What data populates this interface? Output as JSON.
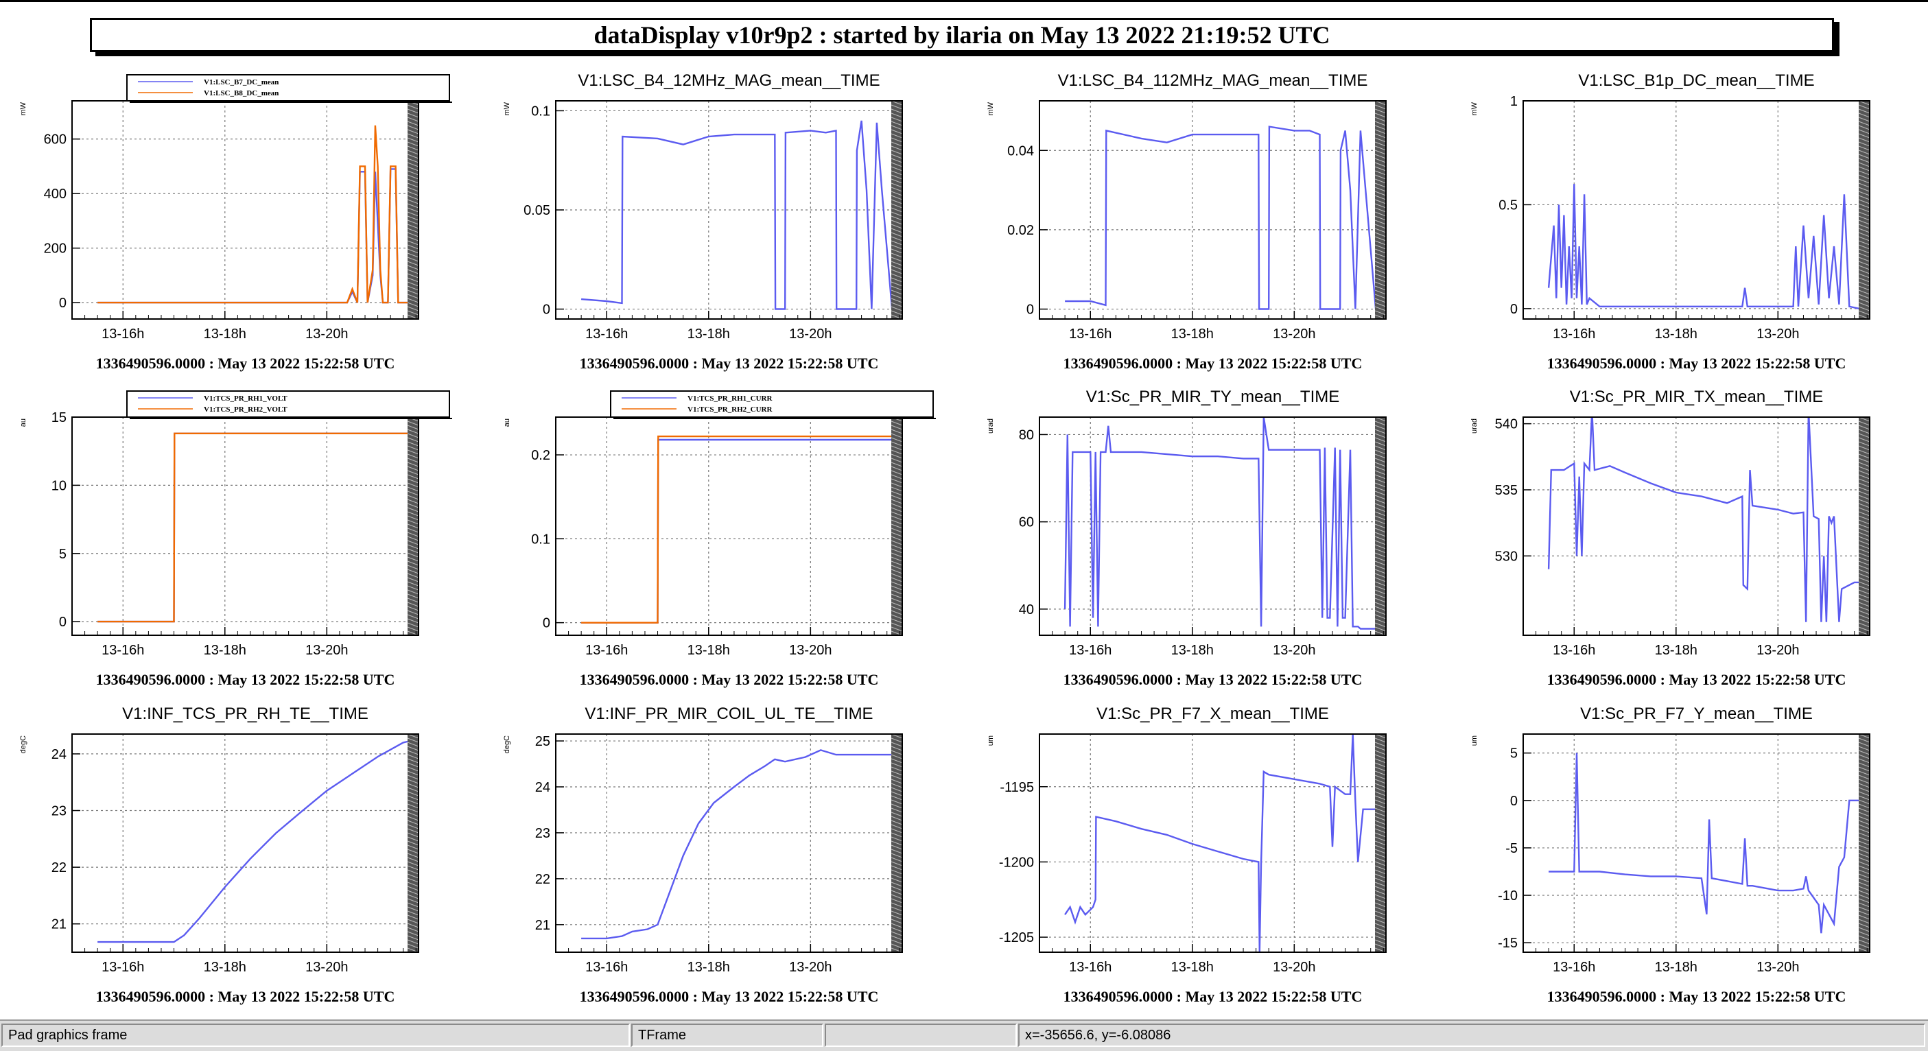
{
  "window": {
    "title": "dataDisplay v10r9p2 : started by ilaria on May 13 2022 21:19:52 UTC"
  },
  "statusbar": {
    "object_info": "Pad graphics frame",
    "class_name": "TFrame",
    "empty": "",
    "coords": "x=-35656.6, y=-6.08086"
  },
  "colors": {
    "blue": "#5b5bf0",
    "orange": "#f06a00",
    "grid": "#666666",
    "axis": "#000000"
  },
  "chart_data": [
    {
      "type": "line",
      "title": "",
      "ylabel": "mW",
      "legend": [
        "V1:LSC_B7_DC_mean",
        "V1:LSC_B8_DC_mean"
      ],
      "ylim": [
        -60,
        740
      ],
      "yticks": [
        0,
        200,
        400,
        600
      ],
      "xticks": [
        "13-16h",
        "13-18h",
        "13-20h"
      ],
      "time_label": "1336490596.0000 : May 13 2022 15:22:58 UTC",
      "series": [
        {
          "name": "V1:LSC_B7_DC_mean",
          "color": "#5b5bf0",
          "x": [
            0,
            4.9,
            5.0,
            5.1,
            5.15,
            5.25,
            5.3,
            5.4,
            5.45,
            5.55,
            5.6,
            5.7,
            5.75,
            5.85,
            5.9,
            6.0,
            6.1
          ],
          "y": [
            0,
            0,
            40,
            0,
            480,
            480,
            0,
            100,
            480,
            100,
            0,
            0,
            490,
            490,
            0,
            0,
            0
          ]
        },
        {
          "name": "V1:LSC_B8_DC_mean",
          "color": "#f06a00",
          "x": [
            0,
            4.9,
            5.0,
            5.1,
            5.15,
            5.25,
            5.3,
            5.4,
            5.45,
            5.5,
            5.55,
            5.6,
            5.7,
            5.75,
            5.85,
            5.9,
            6.0,
            6.1
          ],
          "y": [
            0,
            0,
            50,
            0,
            500,
            500,
            0,
            120,
            650,
            500,
            120,
            0,
            0,
            500,
            500,
            0,
            0,
            0
          ]
        }
      ]
    },
    {
      "type": "line",
      "title": "V1:LSC_B4_12MHz_MAG_mean__TIME",
      "ylabel": "mW",
      "legend": [],
      "ylim": [
        -0.005,
        0.105
      ],
      "yticks": [
        0,
        0.05,
        0.1
      ],
      "xticks": [
        "13-16h",
        "13-18h",
        "13-20h"
      ],
      "time_label": "1336490596.0000 : May 13 2022 15:22:58 UTC",
      "series": [
        {
          "name": "",
          "color": "#5b5bf0",
          "x": [
            0,
            0.5,
            0.8,
            0.81,
            1.5,
            2.0,
            2.5,
            3.0,
            3.5,
            3.8,
            3.81,
            4.0,
            4.01,
            4.5,
            4.8,
            5.0,
            5.01,
            5.4,
            5.41,
            5.5,
            5.6,
            5.7,
            5.8,
            5.9,
            6.1
          ],
          "y": [
            0.005,
            0.004,
            0.003,
            0.087,
            0.086,
            0.083,
            0.087,
            0.088,
            0.088,
            0.088,
            0,
            0,
            0.089,
            0.09,
            0.089,
            0.09,
            0,
            0,
            0.08,
            0.095,
            0.06,
            0,
            0.094,
            0.06,
            0.0
          ]
        }
      ]
    },
    {
      "type": "line",
      "title": "V1:LSC_B4_112MHz_MAG_mean__TIME",
      "ylabel": "mW",
      "legend": [],
      "ylim": [
        -0.0025,
        0.0525
      ],
      "yticks": [
        0,
        0.02,
        0.04
      ],
      "xticks": [
        "13-16h",
        "13-18h",
        "13-20h"
      ],
      "time_label": "1336490596.0000 : May 13 2022 15:22:58 UTC",
      "series": [
        {
          "name": "",
          "color": "#5b5bf0",
          "x": [
            0,
            0.5,
            0.8,
            0.81,
            1.5,
            2.0,
            2.5,
            3.0,
            3.5,
            3.8,
            3.81,
            4.0,
            4.01,
            4.5,
            4.8,
            5.0,
            5.01,
            5.4,
            5.41,
            5.5,
            5.6,
            5.7,
            5.8,
            5.9,
            6.1
          ],
          "y": [
            0.002,
            0.002,
            0.001,
            0.045,
            0.043,
            0.042,
            0.044,
            0.044,
            0.044,
            0.044,
            0,
            0,
            0.046,
            0.045,
            0.045,
            0.044,
            0,
            0,
            0.04,
            0.045,
            0.03,
            0,
            0.045,
            0.03,
            0.0
          ]
        }
      ]
    },
    {
      "type": "line",
      "title": "V1:LSC_B1p_DC_mean__TIME",
      "ylabel": "mW",
      "legend": [],
      "ylim": [
        -0.05,
        1.0
      ],
      "yticks": [
        0,
        0.5,
        1
      ],
      "xticks": [
        "13-16h",
        "13-18h",
        "13-20h"
      ],
      "time_label": "1336490596.0000 : May 13 2022 15:22:58 UTC",
      "series": [
        {
          "name": "",
          "color": "#5b5bf0",
          "x": [
            0,
            0.1,
            0.15,
            0.2,
            0.25,
            0.3,
            0.35,
            0.4,
            0.45,
            0.5,
            0.55,
            0.6,
            0.65,
            0.7,
            0.75,
            0.8,
            1.0,
            2.0,
            3.0,
            3.8,
            3.85,
            3.9,
            4.0,
            4.5,
            4.8,
            4.85,
            4.9,
            5.0,
            5.1,
            5.2,
            5.3,
            5.4,
            5.5,
            5.6,
            5.7,
            5.8,
            5.9,
            6.1
          ],
          "y": [
            0.1,
            0.4,
            0.05,
            0.5,
            0.1,
            0.45,
            0.02,
            0.3,
            0.05,
            0.6,
            0.05,
            0.3,
            0.02,
            0.55,
            0.02,
            0.05,
            0.01,
            0.01,
            0.01,
            0.01,
            0.1,
            0.01,
            0.01,
            0.01,
            0.01,
            0.3,
            0.01,
            0.4,
            0.05,
            0.35,
            0.02,
            0.45,
            0.05,
            0.3,
            0.02,
            0.55,
            0.01,
            0.0
          ]
        }
      ]
    },
    {
      "type": "line",
      "title": "",
      "ylabel": "au",
      "legend": [
        "V1:TCS_PR_RH1_VOLT",
        "V1:TCS_PR_RH2_VOLT"
      ],
      "ylim": [
        -1,
        15
      ],
      "yticks": [
        0,
        5,
        10,
        15
      ],
      "xticks": [
        "13-16h",
        "13-18h",
        "13-20h"
      ],
      "time_label": "1336490596.0000 : May 13 2022 15:22:58 UTC",
      "series": [
        {
          "name": "V1:TCS_PR_RH1_VOLT",
          "color": "#5b5bf0",
          "x": [
            0,
            1.5,
            1.51,
            6.1
          ],
          "y": [
            0,
            0,
            13.8,
            13.8
          ]
        },
        {
          "name": "V1:TCS_PR_RH2_VOLT",
          "color": "#f06a00",
          "x": [
            0,
            1.5,
            1.51,
            6.1
          ],
          "y": [
            0,
            0,
            13.8,
            13.8
          ]
        }
      ]
    },
    {
      "type": "line",
      "title": "",
      "ylabel": "au",
      "legend": [
        "V1:TCS_PR_RH1_CURR",
        "V1:TCS_PR_RH2_CURR"
      ],
      "ylim": [
        -0.015,
        0.245
      ],
      "yticks": [
        0,
        0.1,
        0.2
      ],
      "xticks": [
        "13-16h",
        "13-18h",
        "13-20h"
      ],
      "time_label": "1336490596.0000 : May 13 2022 15:22:58 UTC",
      "series": [
        {
          "name": "V1:TCS_PR_RH1_CURR",
          "color": "#5b5bf0",
          "x": [
            0,
            1.5,
            1.51,
            6.1
          ],
          "y": [
            0,
            0,
            0.218,
            0.218
          ]
        },
        {
          "name": "V1:TCS_PR_RH2_CURR",
          "color": "#f06a00",
          "x": [
            0,
            1.5,
            1.51,
            6.1
          ],
          "y": [
            0,
            0,
            0.222,
            0.222
          ]
        }
      ]
    },
    {
      "type": "line",
      "title": "V1:Sc_PR_MIR_TY_mean__TIME",
      "ylabel": "urad",
      "legend": [],
      "ylim": [
        34,
        84
      ],
      "yticks": [
        40,
        60,
        80
      ],
      "xticks": [
        "13-16h",
        "13-18h",
        "13-20h"
      ],
      "time_label": "1336490596.0000 : May 13 2022 15:22:58 UTC",
      "series": [
        {
          "name": "",
          "color": "#5b5bf0",
          "x": [
            0,
            0.05,
            0.1,
            0.15,
            0.3,
            0.5,
            0.55,
            0.6,
            0.65,
            0.7,
            0.8,
            0.85,
            0.9,
            1.5,
            2.0,
            2.5,
            3.0,
            3.5,
            3.8,
            3.85,
            3.9,
            4.0,
            4.05,
            4.5,
            5.0,
            5.05,
            5.1,
            5.15,
            5.2,
            5.3,
            5.35,
            5.4,
            5.45,
            5.5,
            5.6,
            5.65,
            5.7,
            5.75,
            5.8,
            5.85,
            6.1
          ],
          "y": [
            40,
            80,
            36,
            76,
            76,
            76,
            38,
            76,
            36,
            76,
            76,
            82,
            76,
            76,
            75.5,
            75,
            75,
            74.5,
            74.5,
            36,
            84,
            76.5,
            76.5,
            76.5,
            76.5,
            38,
            77,
            38,
            38,
            77,
            36,
            76.5,
            38,
            38,
            76.5,
            36,
            36,
            36,
            35.5,
            35.5,
            35.5
          ]
        }
      ]
    },
    {
      "type": "line",
      "title": "V1:Sc_PR_MIR_TX_mean__TIME",
      "ylabel": "urad",
      "legend": [],
      "ylim": [
        524,
        540.5
      ],
      "yticks": [
        530,
        535,
        540
      ],
      "xticks": [
        "13-16h",
        "13-18h",
        "13-20h"
      ],
      "time_label": "1336490596.0000 : May 13 2022 15:22:58 UTC",
      "series": [
        {
          "name": "",
          "color": "#5b5bf0",
          "x": [
            0,
            0.05,
            0.1,
            0.3,
            0.5,
            0.55,
            0.6,
            0.65,
            0.7,
            0.8,
            0.85,
            0.9,
            1.2,
            1.5,
            2.0,
            2.5,
            3.0,
            3.5,
            3.8,
            3.82,
            3.9,
            3.95,
            4.0,
            4.5,
            4.8,
            5.0,
            5.05,
            5.1,
            5.2,
            5.3,
            5.35,
            5.4,
            5.45,
            5.5,
            5.55,
            5.6,
            5.7,
            5.75,
            6.0,
            6.1
          ],
          "y": [
            529,
            536.5,
            536.5,
            536.5,
            537,
            530,
            536,
            530,
            537,
            536.5,
            541,
            536.5,
            536.8,
            536.3,
            535.5,
            534.8,
            534.5,
            534,
            534.5,
            527.8,
            527.5,
            536.5,
            533.8,
            533.5,
            533.2,
            533.3,
            525,
            541,
            533,
            532.8,
            525,
            530,
            525,
            533,
            532.5,
            533,
            525,
            527.5,
            528,
            528
          ]
        }
      ]
    },
    {
      "type": "line",
      "title": "V1:INF_TCS_PR_RH_TE__TIME",
      "ylabel": "degC",
      "legend": [],
      "ylim": [
        20.5,
        24.35
      ],
      "yticks": [
        21,
        22,
        23,
        24
      ],
      "xticks": [
        "13-16h",
        "13-18h",
        "13-20h"
      ],
      "time_label": "1336490596.0000 : May 13 2022 15:22:58 UTC",
      "series": [
        {
          "name": "",
          "color": "#5b5bf0",
          "x": [
            0,
            0.5,
            1.0,
            1.5,
            1.7,
            2.0,
            2.5,
            3.0,
            3.5,
            4.0,
            4.5,
            5.0,
            5.5,
            6.0,
            6.1
          ],
          "y": [
            20.68,
            20.68,
            20.68,
            20.68,
            20.8,
            21.1,
            21.65,
            22.15,
            22.6,
            22.98,
            23.35,
            23.65,
            23.95,
            24.2,
            24.22
          ]
        }
      ]
    },
    {
      "type": "line",
      "title": "V1:INF_PR_MIR_COIL_UL_TE__TIME",
      "ylabel": "degC",
      "legend": [],
      "ylim": [
        20.4,
        25.15
      ],
      "yticks": [
        21,
        22,
        23,
        24,
        25
      ],
      "xticks": [
        "13-16h",
        "13-18h",
        "13-20h"
      ],
      "time_label": "1336490596.0000 : May 13 2022 15:22:58 UTC",
      "series": [
        {
          "name": "",
          "color": "#5b5bf0",
          "x": [
            0,
            0.5,
            0.8,
            1.0,
            1.3,
            1.5,
            1.7,
            2.0,
            2.3,
            2.6,
            3.0,
            3.3,
            3.6,
            3.8,
            4.0,
            4.4,
            4.7,
            5.0,
            5.5,
            6.1
          ],
          "y": [
            20.7,
            20.7,
            20.75,
            20.85,
            20.9,
            21.0,
            21.6,
            22.5,
            23.2,
            23.65,
            24.0,
            24.25,
            24.45,
            24.6,
            24.55,
            24.65,
            24.8,
            24.7,
            24.7,
            24.7
          ]
        }
      ]
    },
    {
      "type": "line",
      "title": "V1:Sc_PR_F7_X_mean__TIME",
      "ylabel": "um",
      "legend": [],
      "ylim": [
        -1206,
        -1191.5
      ],
      "yticks": [
        -1205,
        -1200,
        -1195
      ],
      "xticks": [
        "13-16h",
        "13-18h",
        "13-20h"
      ],
      "time_label": "1336490596.0000 : May 13 2022 15:22:58 UTC",
      "series": [
        {
          "name": "",
          "color": "#5b5bf0",
          "x": [
            0,
            0.1,
            0.2,
            0.3,
            0.4,
            0.55,
            0.6,
            0.61,
            1.0,
            1.5,
            2.0,
            2.5,
            3.0,
            3.5,
            3.8,
            3.82,
            3.85,
            3.9,
            4.0,
            4.5,
            5.0,
            5.2,
            5.25,
            5.3,
            5.5,
            5.6,
            5.65,
            5.7,
            5.75,
            5.85,
            6.1
          ],
          "y": [
            -1203.5,
            -1203,
            -1204,
            -1203,
            -1203.5,
            -1203,
            -1202.5,
            -1197,
            -1197.3,
            -1197.8,
            -1198.2,
            -1198.8,
            -1199.3,
            -1199.8,
            -1200,
            -1206,
            -1200,
            -1194,
            -1194.2,
            -1194.5,
            -1194.8,
            -1195,
            -1199,
            -1195,
            -1195.5,
            -1195.5,
            -1191.5,
            -1196,
            -1200,
            -1196.5,
            -1196.5
          ]
        }
      ]
    },
    {
      "type": "line",
      "title": "V1:Sc_PR_F7_Y_mean__TIME",
      "ylabel": "um",
      "legend": [],
      "ylim": [
        -16,
        7
      ],
      "yticks": [
        -15,
        -10,
        -5,
        0,
        5
      ],
      "xticks": [
        "13-16h",
        "13-18h",
        "13-20h"
      ],
      "time_label": "1336490596.0000 : May 13 2022 15:22:58 UTC",
      "series": [
        {
          "name": "",
          "color": "#5b5bf0",
          "x": [
            0,
            0.3,
            0.5,
            0.55,
            0.6,
            0.8,
            1.0,
            1.5,
            2.0,
            2.5,
            3.0,
            3.1,
            3.15,
            3.2,
            3.5,
            3.8,
            3.85,
            3.9,
            4.0,
            4.5,
            4.8,
            5.0,
            5.05,
            5.1,
            5.3,
            5.35,
            5.4,
            5.5,
            5.6,
            5.7,
            5.8,
            5.9,
            6.0,
            6.1
          ],
          "y": [
            -7.5,
            -7.5,
            -7.5,
            5,
            -7.5,
            -7.5,
            -7.5,
            -7.8,
            -8,
            -8,
            -8.2,
            -12,
            -2,
            -8.2,
            -8.5,
            -8.8,
            -4,
            -9,
            -9,
            -9.5,
            -9.5,
            -9.3,
            -8,
            -9.5,
            -11,
            -14,
            -11,
            -12,
            -13,
            -7,
            -6,
            0,
            0,
            0
          ]
        }
      ]
    }
  ]
}
